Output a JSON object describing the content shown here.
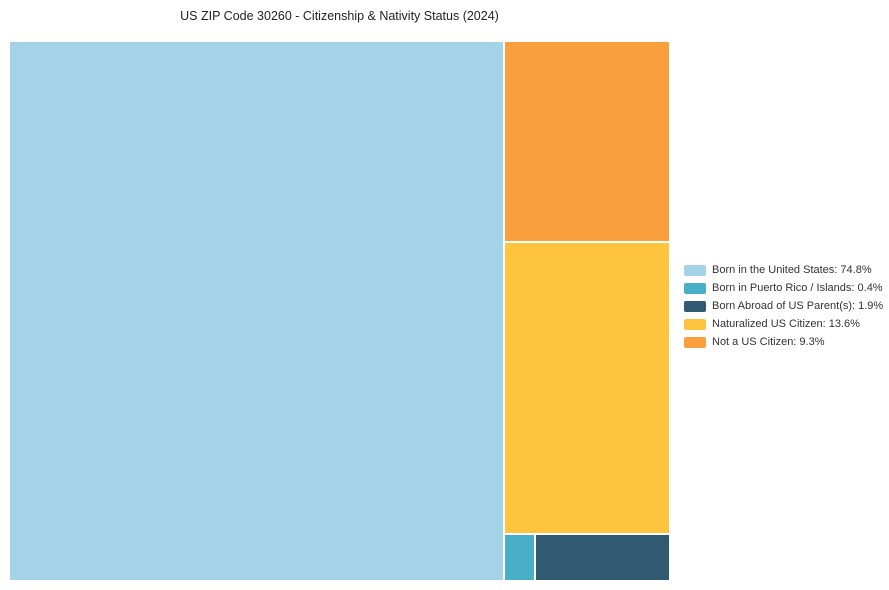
{
  "title": "US ZIP Code 30260 - Citizenship & Nativity Status (2024)",
  "chart_data": {
    "type": "treemap",
    "title": "US ZIP Code 30260 - Citizenship & Nativity Status (2024)",
    "unit": "%",
    "items": [
      {
        "label": "Born in the United States",
        "value": 74.8,
        "color": "#A4D2E7"
      },
      {
        "label": "Born in Puerto Rico / Islands",
        "value": 0.4,
        "color": "#49AEC7"
      },
      {
        "label": "Born Abroad of US Parent(s)",
        "value": 1.9,
        "color": "#2F5A72"
      },
      {
        "label": "Naturalized US Citizen",
        "value": 13.6,
        "color": "#FEC43D"
      },
      {
        "label": "Not a US Citizen",
        "value": 9.3,
        "color": "#FA9F3D"
      }
    ],
    "legend_position": "right",
    "legend": [
      "Born in the United States: 74.8%",
      "Born in Puerto Rico / Islands: 0.4%",
      "Born Abroad of US Parent(s): 1.9%",
      "Naturalized US Citizen: 13.6%",
      "Not a US Citizen: 9.3%"
    ],
    "background": "#ffffff"
  }
}
